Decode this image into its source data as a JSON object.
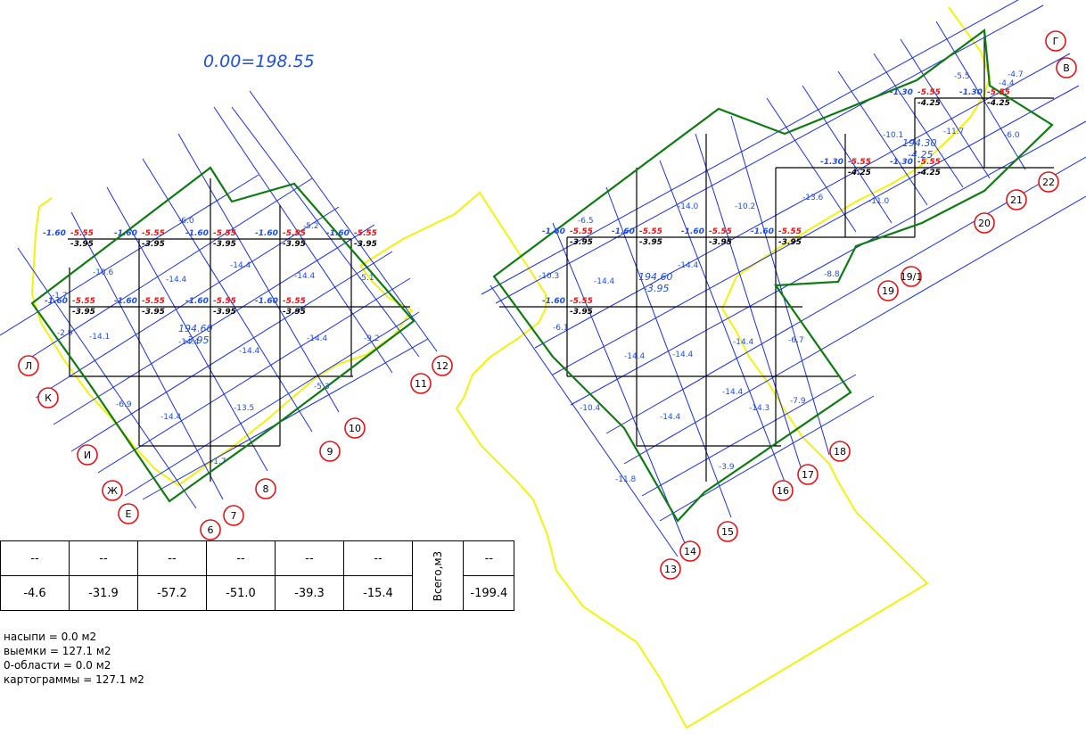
{
  "datum": "0.00=198.55",
  "table": {
    "headers": [
      "--",
      "--",
      "--",
      "--",
      "--",
      "--",
      "--"
    ],
    "values": [
      "-4.6",
      "-31.9",
      "-57.2",
      "-51.0",
      "-39.3",
      "-15.4"
    ],
    "total_label": "Всего,м3",
    "total_value": "-199.4"
  },
  "areas": [
    "насыпи = 0.0 м2",
    "выемки = 127.1 м2",
    "0-области = 0.0 м2",
    "картограммы = 127.1 м2"
  ],
  "left_plot": {
    "center_labels": [
      {
        "text": "194.60",
        "sub": "-3.95"
      }
    ],
    "cell_volumes": [
      "-10.6",
      "-6.0",
      "-14.4",
      "-14.4",
      "-14.4",
      "-2.9",
      "-14.1",
      "-14.4",
      "-14.4",
      "-14.4",
      "-6.9",
      "-14.4",
      "-13.5",
      "-5.3",
      "-9.2",
      "-5.1",
      "-1.7",
      "-1.7",
      "-5.2"
    ],
    "corner_red": [
      "-5.55",
      "-5.55",
      "-5.55",
      "-5.55",
      "-5.55",
      "-5.55",
      "-5.55",
      "-5.55",
      "-5.55"
    ],
    "corner_blue": [
      "-1.60",
      "-1.60",
      "-1.60",
      "-1.60",
      "-1.60",
      "-1.60",
      "-1.60",
      "-1.60",
      "-1.60"
    ],
    "corner_black": [
      "-3.95",
      "-3.95",
      "-3.95",
      "-3.95",
      "-3.95",
      "-3.95",
      "-3.95",
      "-3.95",
      "-3.95"
    ],
    "axis_labels": [
      "Л",
      "К",
      "И",
      "Ж",
      "Е",
      "6",
      "7",
      "8",
      "9",
      "10",
      "11",
      "12"
    ]
  },
  "right_plot": {
    "center_labels": [
      {
        "text": "194.60",
        "sub": "-3.95"
      },
      {
        "text": "194.30",
        "sub": "-4.25"
      }
    ],
    "cell_volumes": [
      "-6.5",
      "-14.0",
      "-10.2",
      "-13.6",
      "-14.4",
      "-14.4",
      "-14.4",
      "-14.4",
      "-14.4",
      "-14.4",
      "-14.3",
      "-14.4",
      "-10.4",
      "-11.8",
      "-3.9",
      "-6.7",
      "-7.9",
      "-11.0",
      "-10.1",
      "-11.7",
      "-6.0",
      "-4.4",
      "-4.7",
      "-5.5",
      "-8.8",
      "-6.1",
      "-10.3"
    ],
    "corner_red": [
      "-5.55",
      "-5.55",
      "-5.55",
      "-5.55",
      "-5.55",
      "-5.55",
      "-5.55",
      "-5.55",
      "-5.55"
    ],
    "corner_blue": [
      "-1.60",
      "-1.60",
      "-1.60",
      "-1.60",
      "-1.60",
      "-1.30",
      "-1.30",
      "-1.30",
      "-1.30"
    ],
    "corner_black": [
      "-3.95",
      "-3.95",
      "-3.95",
      "-3.95",
      "-3.95",
      "-4.25",
      "-4.25",
      "-4.25",
      "-4.25"
    ],
    "axis_labels": [
      "Г",
      "В",
      "22",
      "21",
      "20",
      "19/1",
      "19",
      "18",
      "17",
      "16",
      "15",
      "14",
      "13"
    ]
  },
  "colors": {
    "grid_blue": "#1a2fd6",
    "boundary_green": "#0f7a12",
    "contour_yellow": "#f2f20f",
    "label_red": "#e01414",
    "label_blue": "#1f4fd9",
    "circle_red": "#e01414"
  }
}
